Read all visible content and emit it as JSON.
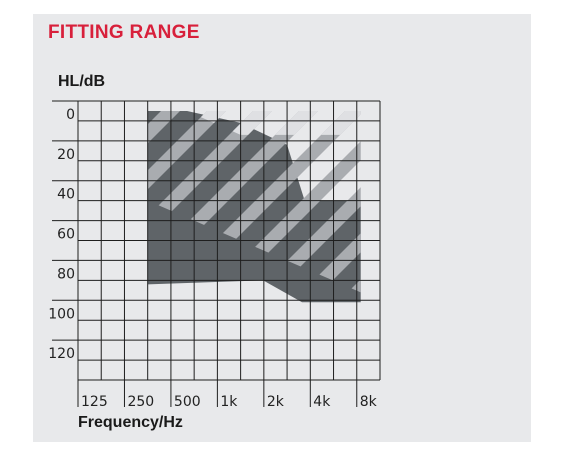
{
  "title": "FITTING RANGE",
  "colors": {
    "title": "#d8203b",
    "panel": "#e8e9eb",
    "grid": "#1e1e1e",
    "dark": "#5f6468",
    "hatch_mid": "#a9acb0",
    "hatch_light": "#dfe0e3"
  },
  "chart_data": {
    "type": "area",
    "title": "FITTING RANGE",
    "xlabel": "Frequency/Hz",
    "ylabel": "HL/dB",
    "x_scale": "log2",
    "x_ticks": [
      "125",
      "250",
      "500",
      "1k",
      "2k",
      "4k",
      "8k"
    ],
    "x_tick_values": [
      125,
      250,
      500,
      1000,
      2000,
      4000,
      8000
    ],
    "y_ticks": [
      "0",
      "20",
      "40",
      "60",
      "80",
      "100",
      "120"
    ],
    "y_tick_values": [
      0,
      20,
      40,
      60,
      80,
      100,
      120
    ],
    "y_inverted": true,
    "grid": true,
    "series": [
      {
        "style": "solid-dark",
        "x": [
          250,
          250,
          450,
          1000,
          2000,
          2600,
          6000,
          6000,
          2500,
          1400,
          250
        ],
        "upper": [
          -5,
          -5,
          -5,
          1,
          12,
          40,
          40,
          91,
          91,
          80,
          82
        ],
        "polygon_x": [
          250,
          450,
          1000,
          2000,
          2600,
          6000,
          6000,
          2500,
          1400,
          250
        ],
        "polygon_y": [
          -5,
          -5,
          1,
          12,
          40,
          40,
          91,
          91,
          80,
          82
        ]
      },
      {
        "style": "hatch-mid",
        "polygon_x": [
          250,
          6000,
          6000,
          250
        ],
        "polygon_y": [
          -5,
          -5,
          86,
          40
        ]
      },
      {
        "style": "hatch-light",
        "polygon_x": [
          450,
          6000,
          6000,
          1000
        ],
        "polygon_y": [
          -5,
          -5,
          7,
          7
        ]
      }
    ]
  }
}
